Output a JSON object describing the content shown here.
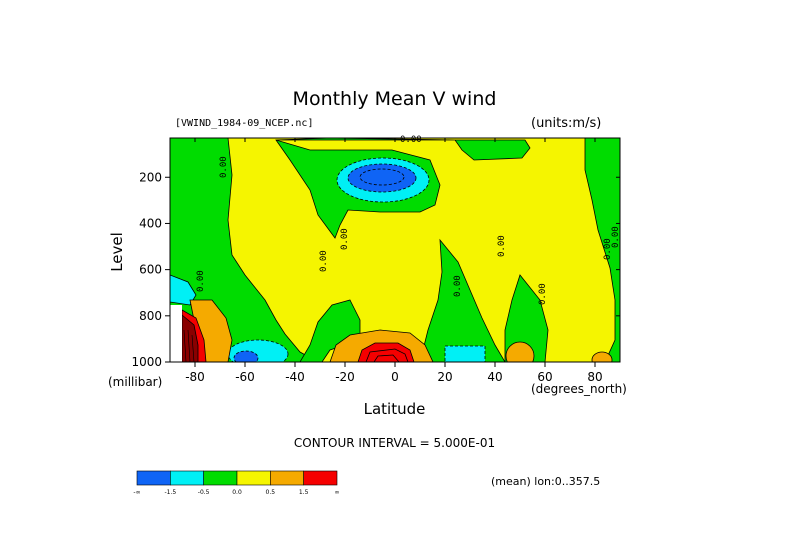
{
  "chart_data": {
    "type": "contour",
    "title": "Monthly Mean V wind",
    "dataset": "[VWIND_1984-09_NCEP.nc]",
    "units": "(units:m/s)",
    "xlabel": "Latitude",
    "x_units": "(degrees_north)",
    "ylabel": "Level",
    "y_units": "(millibar)",
    "xlim": [
      -90,
      90
    ],
    "ylim": [
      1000,
      30
    ],
    "x_ticks": [
      "-80",
      "-60",
      "-40",
      "-20",
      "0",
      "20",
      "40",
      "60",
      "80"
    ],
    "y_ticks": [
      "200",
      "400",
      "600",
      "800",
      "1000"
    ],
    "contour_interval": "CONTOUR INTERVAL = 5.000E-01",
    "averaging": "(mean) lon:0..357.5",
    "contour_labels": [
      "0.00",
      "0.00",
      "0.00",
      "0.00",
      "0.00",
      "0.00",
      "0.00",
      "0.00",
      "0.00",
      "0.00"
    ],
    "colorbar": {
      "colors": [
        "#0f64f5",
        "#00f0f5",
        "#00dc00",
        "#f5f500",
        "#f5aa00",
        "#f50000"
      ],
      "labels": [
        "-∞",
        "-1.5",
        "-0.5",
        "0.0",
        "0.5",
        "1.5",
        "∞"
      ]
    }
  }
}
